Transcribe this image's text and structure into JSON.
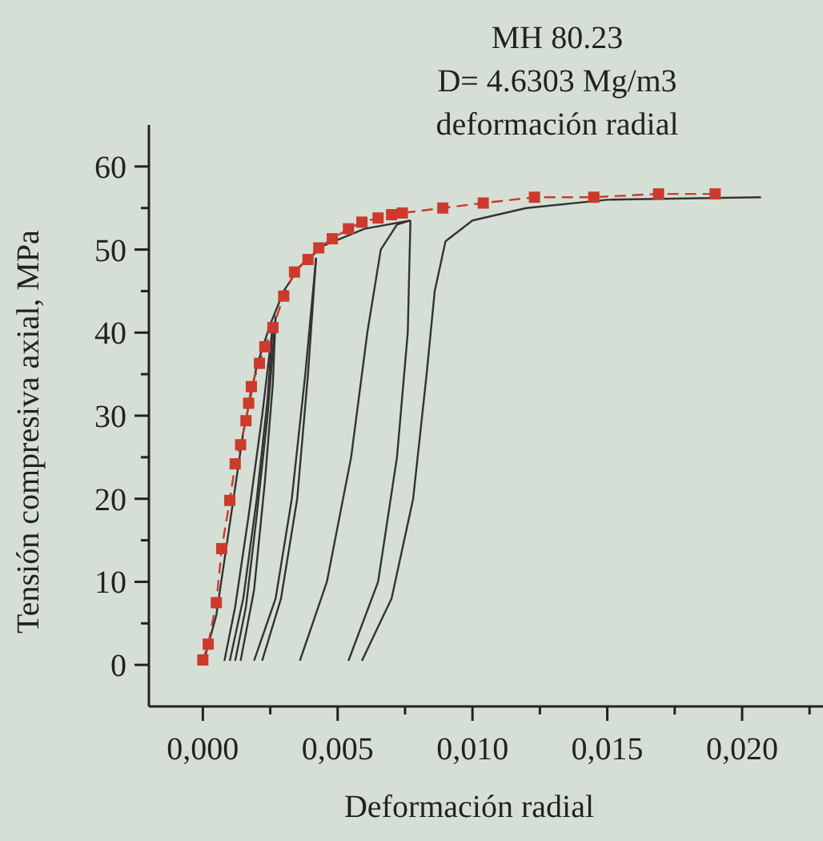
{
  "chart_data": {
    "type": "line",
    "title": "MH 80.23",
    "subtitle": "D= 4.6303 Mg/m3",
    "annotations": [
      "deformación radial"
    ],
    "xlabel": "Deformación radial",
    "ylabel": "Tensión compresiva axial, MPa",
    "xlim": [
      -0.002,
      0.023
    ],
    "ylim": [
      -5,
      65
    ],
    "xticks": [
      {
        "value": 0,
        "label": "0,000"
      },
      {
        "value": 0.0025,
        "label": null
      },
      {
        "value": 0.005,
        "label": "0,005"
      },
      {
        "value": 0.0075,
        "label": null
      },
      {
        "value": 0.01,
        "label": "0,010"
      },
      {
        "value": 0.0125,
        "label": null
      },
      {
        "value": 0.015,
        "label": "0,015"
      },
      {
        "value": 0.0175,
        "label": null
      },
      {
        "value": 0.02,
        "label": "0,020"
      },
      {
        "value": 0.0225,
        "label": null
      }
    ],
    "yticks": [
      0,
      {
        "value": 5,
        "label": null
      },
      10,
      {
        "value": 15,
        "label": null
      },
      20,
      {
        "value": 25,
        "label": null
      },
      30,
      {
        "value": 35,
        "label": null
      },
      40,
      {
        "value": 45,
        "label": null
      },
      50,
      {
        "value": 55,
        "label": null
      },
      60
    ],
    "grid": false,
    "series": [
      {
        "color": "#333333",
        "marker": "none",
        "line_style": "solid",
        "x": [
          0,
          0.0005,
          0.001,
          0.0015,
          0.002,
          0.0025,
          0.003,
          0.0036,
          0.0045,
          0.006,
          0.0077
        ],
        "values": [
          0,
          6,
          17,
          28,
          36,
          41,
          45,
          48,
          50.5,
          52.5,
          53.5
        ]
      },
      {
        "color": "#333333",
        "marker": "none",
        "line_style": "solid",
        "x": [
          0.0008,
          0.0012,
          0.0017,
          0.0022,
          0.0026
        ],
        "values": [
          0.5,
          7,
          18,
          30,
          41
        ]
      },
      {
        "color": "#333333",
        "marker": "none",
        "line_style": "solid",
        "x": [
          0.001,
          0.0015,
          0.002,
          0.0024,
          0.0026
        ],
        "values": [
          0.5,
          8,
          20,
          32,
          41
        ]
      },
      {
        "color": "#333333",
        "marker": "none",
        "line_style": "solid",
        "x": [
          0.0012,
          0.0016,
          0.002,
          0.0024,
          0.0027
        ],
        "values": [
          0.5,
          7,
          18,
          30,
          42
        ]
      },
      {
        "color": "#333333",
        "marker": "none",
        "line_style": "solid",
        "x": [
          0.0014,
          0.0019,
          0.0023,
          0.0026,
          0.0027
        ],
        "values": [
          0.5,
          9,
          22,
          34,
          42
        ]
      },
      {
        "color": "#333333",
        "marker": "none",
        "line_style": "solid",
        "x": [
          0.0019,
          0.0027,
          0.0033,
          0.0038,
          0.0042
        ],
        "values": [
          0.5,
          8,
          20,
          35,
          49
        ]
      },
      {
        "color": "#333333",
        "marker": "none",
        "line_style": "solid",
        "x": [
          0.0022,
          0.0029,
          0.0035,
          0.0039,
          0.0042
        ],
        "values": [
          0.5,
          8,
          20,
          35,
          49
        ]
      },
      {
        "color": "#333333",
        "marker": "none",
        "line_style": "solid",
        "x": [
          0.0036,
          0.0046,
          0.0055,
          0.0061,
          0.0066,
          0.0072,
          0.0077
        ],
        "values": [
          0.5,
          10,
          25,
          40,
          50,
          53,
          53.5
        ]
      },
      {
        "color": "#333333",
        "marker": "none",
        "line_style": "solid",
        "x": [
          0.0054,
          0.0065,
          0.0072,
          0.0076,
          0.0077
        ],
        "values": [
          0.5,
          10,
          25,
          40,
          53.5
        ]
      },
      {
        "color": "#333333",
        "marker": "none",
        "line_style": "solid",
        "x": [
          0.0059,
          0.007,
          0.0078,
          0.0083,
          0.0086,
          0.009,
          0.01,
          0.012,
          0.015,
          0.0207
        ],
        "values": [
          0.5,
          8,
          20,
          35,
          45,
          51,
          53.5,
          55,
          56,
          56.3
        ]
      },
      {
        "color": "#cc3a2e",
        "marker": "square",
        "line_style": "dashed",
        "x": [
          0,
          0.0002,
          0.0005,
          0.0007,
          0.001,
          0.0012,
          0.0014,
          0.0016,
          0.0017,
          0.0018,
          0.0021,
          0.0023,
          0.0026,
          0.003,
          0.0034,
          0.0039,
          0.0043,
          0.0048,
          0.0054,
          0.0059,
          0.0065,
          0.007,
          0.0074,
          0.0089,
          0.0104,
          0.0123,
          0.0145,
          0.0169,
          0.019
        ],
        "values": [
          0.6,
          2.5,
          7.5,
          14,
          19.8,
          24.2,
          26.5,
          29.4,
          31.5,
          33.5,
          36.3,
          38.3,
          40.6,
          44.4,
          47.3,
          48.8,
          50.2,
          51.3,
          52.5,
          53.3,
          53.8,
          54.2,
          54.4,
          55,
          55.6,
          56.3,
          56.3,
          56.7,
          56.7
        ]
      }
    ]
  }
}
